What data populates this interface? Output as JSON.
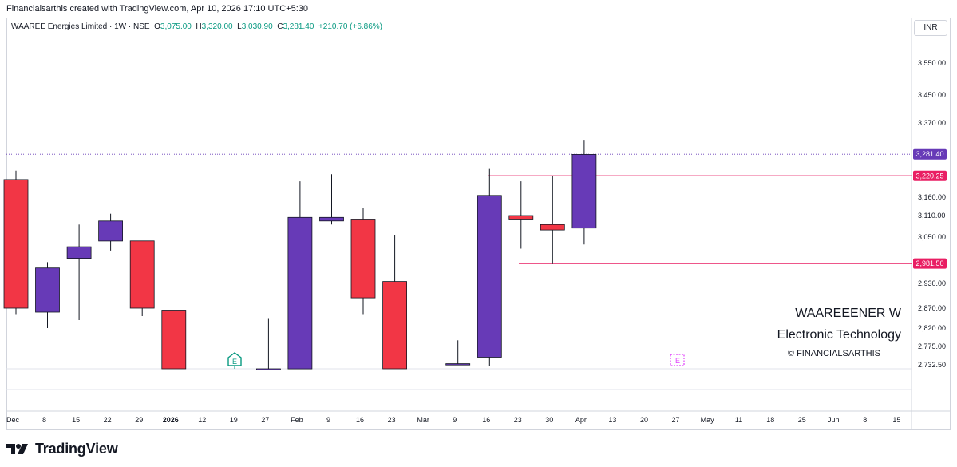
{
  "header": {
    "attribution": "Financialsarthis created with TradingView.com, Apr 10, 2026 17:10 UTC+5:30"
  },
  "legend": {
    "symbol": "WAAREE Energies Limited · 1W · NSE",
    "open_label": "O",
    "open": "3,075.00",
    "high_label": "H",
    "high": "3,320.00",
    "low_label": "L",
    "low": "3,030.90",
    "close_label": "C",
    "close": "3,281.40",
    "change": "+210.70 (+6.86%)"
  },
  "currency": "INR",
  "watermark": {
    "symbol": "WAAREEENER W",
    "sector": "Electronic Technology",
    "copyright": "© FINANCIALSARTHIS"
  },
  "logo": {
    "text": "TradingView"
  },
  "colors": {
    "up": "#673ab7",
    "down": "#f23645",
    "level": "#e91e63",
    "current_price": "#673ab7",
    "earnings_green": "#089981",
    "earnings_purple": "#e040fb"
  },
  "chart_data": {
    "type": "candlestick",
    "ylim": [
      2720,
      3620
    ],
    "y_ticks": [
      "3,550.00",
      "3,450.00",
      "3,370.00",
      "3,160.00",
      "3,110.00",
      "3,050.00",
      "2,930.00",
      "2,870.00",
      "2,820.00",
      "2,775.00",
      "2,732.50"
    ],
    "y_tick_values": [
      3550,
      3450,
      3370,
      3160,
      3110,
      3050,
      2930,
      2870,
      2820,
      2775,
      2732.5
    ],
    "x_labels": [
      "Dec",
      "8",
      "15",
      "22",
      "29",
      "2026",
      "12",
      "19",
      "27",
      "Feb",
      "9",
      "16",
      "23",
      "Mar",
      "9",
      "16",
      "23",
      "30",
      "Apr",
      "13",
      "20",
      "27",
      "May",
      "11",
      "18",
      "25",
      "Jun",
      "8",
      "15"
    ],
    "bold_x_labels": [
      "2026"
    ],
    "candles": [
      {
        "week": "Dec 1",
        "o": 3210,
        "h": 3235,
        "l": 2855,
        "c": 2870
      },
      {
        "week": "Dec 8",
        "o": 2860,
        "h": 2985,
        "l": 2820,
        "c": 2970
      },
      {
        "week": "Dec 15",
        "o": 2995,
        "h": 3085,
        "l": 2840,
        "c": 3025
      },
      {
        "week": "Dec 22",
        "o": 3040,
        "h": 3115,
        "l": 3015,
        "c": 3095
      },
      {
        "week": "Dec 29",
        "o": 3040,
        "h": 3040,
        "l": 2850,
        "c": 2870
      },
      {
        "week": "Jan 5",
        "o": 2865,
        "h": 2865,
        "l": 2700,
        "c": 2700
      },
      {
        "week": "Jan 26",
        "o": 2700,
        "h": 2845,
        "l": 2700,
        "c": 2700
      },
      {
        "week": "Feb 2",
        "o": 2700,
        "h": 3205,
        "l": 2700,
        "c": 3105
      },
      {
        "week": "Feb 9",
        "o": 3095,
        "h": 3225,
        "l": 3085,
        "c": 3105
      },
      {
        "week": "Feb 16",
        "o": 3100,
        "h": 3130,
        "l": 2855,
        "c": 2895
      },
      {
        "week": "Feb 23",
        "o": 2935,
        "h": 3055,
        "l": 2700,
        "c": 2700
      },
      {
        "week": "Mar 9",
        "o": 2732,
        "h": 2790,
        "l": 2732,
        "c": 2735
      },
      {
        "week": "Mar 16",
        "o": 2750,
        "h": 3240,
        "l": 2730,
        "c": 3165
      },
      {
        "week": "Mar 23",
        "o": 3110,
        "h": 3205,
        "l": 3020,
        "c": 3100
      },
      {
        "week": "Mar 30",
        "o": 3085,
        "h": 3220,
        "l": 2980,
        "c": 3070
      },
      {
        "week": "Apr 6",
        "o": 3075,
        "h": 3320,
        "l": 3031,
        "c": 3281
      }
    ],
    "levels": [
      {
        "value": 3220.25,
        "label": "3,220.25"
      },
      {
        "value": 2981.5,
        "label": "2,981.50"
      }
    ],
    "current_price": {
      "value": 3281.4,
      "label": "3,281.40"
    }
  }
}
